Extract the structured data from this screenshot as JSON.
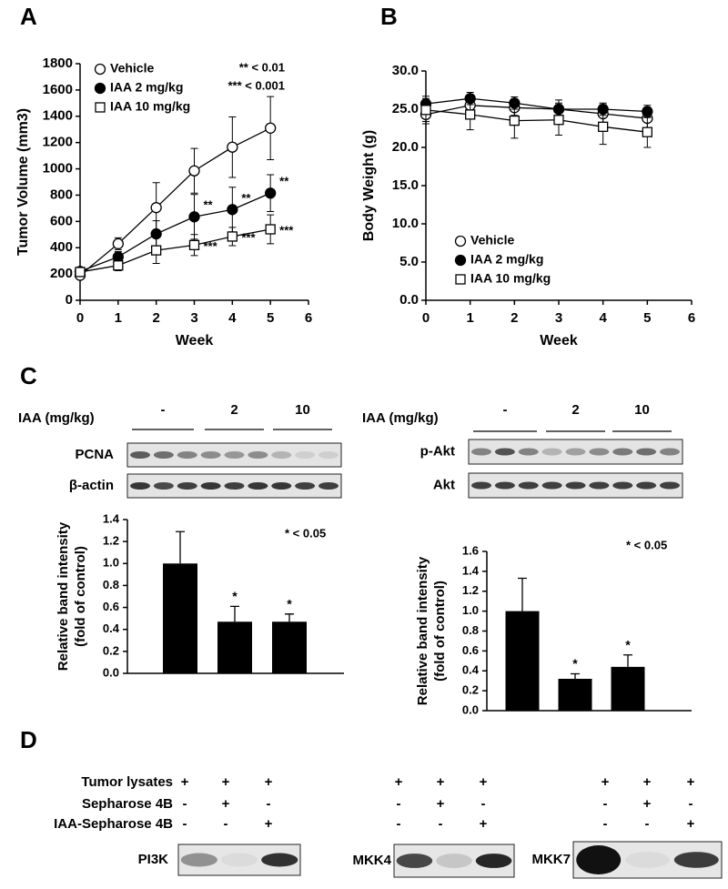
{
  "panel_labels": [
    "A",
    "B",
    "C",
    "D"
  ],
  "chart_data": [
    {
      "type": "line",
      "xlabel": "Week",
      "ylabel": "Tumor Volume (mm3)",
      "x": [
        0,
        1,
        2,
        3,
        4,
        5
      ],
      "xlim": [
        0,
        6
      ],
      "xticks": [
        0,
        1,
        2,
        3,
        4,
        5,
        6
      ],
      "ylim": [
        0,
        1800
      ],
      "yticks": [
        0,
        200,
        400,
        600,
        800,
        1000,
        1200,
        1400,
        1600,
        1800
      ],
      "legend": "upper left",
      "notes": [
        "** < 0.01",
        "*** < 0.001"
      ],
      "series": [
        {
          "name": "Vehicle",
          "color": "#000000",
          "marker": "open-circle",
          "values": [
            190,
            430,
            705,
            985,
            1165,
            1310
          ],
          "errors": [
            20,
            45,
            190,
            170,
            230,
            240
          ]
        },
        {
          "name": "IAA 2 mg/kg",
          "color": "#000000",
          "marker": "filled-circle",
          "values": [
            220,
            330,
            505,
            635,
            690,
            815
          ],
          "errors": [
            15,
            40,
            100,
            170,
            170,
            140
          ],
          "sig": [
            null,
            null,
            null,
            "**",
            "**",
            "**"
          ]
        },
        {
          "name": "IAA 10 mg/kg",
          "color": "#000000",
          "marker": "open-square",
          "values": [
            215,
            265,
            380,
            420,
            485,
            540
          ],
          "errors": [
            15,
            40,
            100,
            80,
            70,
            110
          ],
          "sig": [
            null,
            null,
            null,
            "***",
            "***",
            "***"
          ]
        }
      ]
    },
    {
      "type": "line",
      "xlabel": "Week",
      "ylabel": "Body Weight (g)",
      "x": [
        0,
        1,
        2,
        3,
        4,
        5
      ],
      "xlim": [
        0,
        6
      ],
      "xticks": [
        0,
        1,
        2,
        3,
        4,
        5,
        6
      ],
      "ylim": [
        0,
        30
      ],
      "yticks": [
        {
          "value": 0,
          "label": "0.0"
        },
        {
          "value": 5,
          "label": "5.0"
        },
        {
          "value": 10,
          "label": "10.0"
        },
        {
          "value": 15,
          "label": "15.0"
        },
        {
          "value": 20,
          "label": "20.0"
        },
        {
          "value": 25,
          "label": "25.0"
        },
        {
          "value": 30,
          "label": "30.0"
        }
      ],
      "legend": "lower right",
      "series": [
        {
          "name": "Vehicle",
          "color": "#000000",
          "marker": "open-circle",
          "values": [
            24.3,
            25.5,
            25.2,
            25.0,
            24.4,
            23.8
          ],
          "errors": [
            1.2,
            1.0,
            1.0,
            1.2,
            1.2,
            1.3
          ]
        },
        {
          "name": "IAA 2 mg/kg",
          "color": "#000000",
          "marker": "filled-circle",
          "values": [
            25.7,
            26.4,
            25.8,
            25.0,
            25.0,
            24.7
          ],
          "errors": [
            1.0,
            0.8,
            0.8,
            0.8,
            0.8,
            0.8
          ]
        },
        {
          "name": "IAA 10 mg/kg",
          "color": "#000000",
          "marker": "open-square",
          "values": [
            24.9,
            24.3,
            23.5,
            23.6,
            22.7,
            22.0
          ],
          "errors": [
            1.5,
            2.0,
            2.3,
            2.0,
            2.3,
            2.0
          ]
        }
      ]
    },
    {
      "type": "bar",
      "ylabel": [
        "Relative band intensity",
        "(fold of control)"
      ],
      "categories": [
        null,
        null,
        null
      ],
      "values": [
        1.0,
        0.47,
        0.47
      ],
      "errors": [
        0.29,
        0.14,
        0.07
      ],
      "value_annotations": [
        null,
        "*",
        "*"
      ],
      "color": "#000000",
      "notes": [
        "* < 0.05"
      ],
      "ylim": [
        0,
        1.4
      ],
      "yticks": [
        {
          "value": 0,
          "label": "0.0"
        },
        0.2,
        0.4,
        0.6,
        0.8,
        {
          "value": 1,
          "label": "1.0"
        },
        1.2,
        1.4
      ]
    },
    {
      "type": "bar",
      "ylabel": [
        "Relative band intensity",
        "(fold of control)"
      ],
      "categories": [
        null,
        null,
        null
      ],
      "values": [
        1.0,
        0.32,
        0.44
      ],
      "errors": [
        0.33,
        0.05,
        0.12
      ],
      "value_annotations": [
        null,
        "*",
        "*"
      ],
      "color": "#000000",
      "notes": [
        "* < 0.05"
      ],
      "ylim": [
        0,
        1.6
      ],
      "yticks": [
        {
          "value": 0,
          "label": "0.0"
        },
        0.2,
        0.4,
        0.6,
        0.8,
        {
          "value": 1,
          "label": "1.0"
        },
        1.2,
        1.4,
        1.6
      ]
    }
  ],
  "blots": [
    {
      "treatment": "IAA (mg/kg)",
      "groups": [
        "-",
        "2",
        "10"
      ],
      "rows": [
        "PCNA",
        "β-actin"
      ]
    },
    {
      "treatment": "IAA (mg/kg)",
      "groups": [
        "-",
        "2",
        "10"
      ],
      "rows": [
        "p-Akt",
        "Akt"
      ]
    }
  ],
  "pulldown": {
    "rows": [
      "Tumor lysates",
      "Sepharose 4B",
      "IAA-Sepharose 4B"
    ],
    "groups": [
      {
        "blot": "PI3K",
        "signs": [
          [
            "+",
            "+",
            "+"
          ],
          [
            "-",
            "+",
            "-"
          ],
          [
            "-",
            "-",
            "+"
          ]
        ]
      },
      {
        "blot": "MKK4",
        "signs": [
          [
            "+",
            "+",
            "+"
          ],
          [
            "-",
            "+",
            "-"
          ],
          [
            "-",
            "-",
            "+"
          ]
        ]
      },
      {
        "blot": "MKK7",
        "signs": [
          [
            "+",
            "+",
            "+"
          ],
          [
            "-",
            "+",
            "-"
          ],
          [
            "-",
            "-",
            "+"
          ]
        ]
      }
    ]
  }
}
